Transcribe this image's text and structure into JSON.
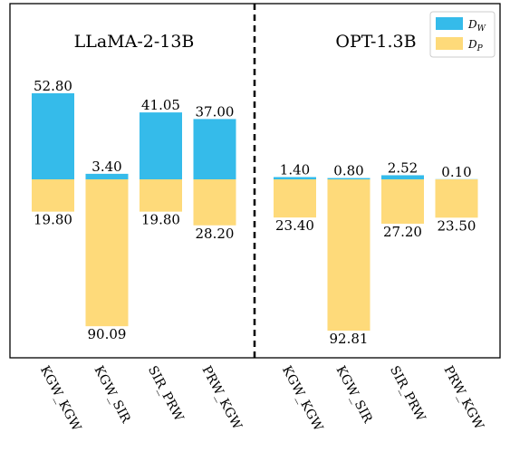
{
  "chart_data": {
    "type": "bar",
    "panels": [
      {
        "title": "LLaMA-2-13B",
        "categories": [
          "KGW_KGW",
          "KGW_SIR",
          "SIR_PRW",
          "PRW_KGW"
        ],
        "series": [
          {
            "name": "D_W",
            "values": [
              52.8,
              3.4,
              41.05,
              37.0
            ],
            "labels": [
              "52.80",
              "3.40",
              "41.05",
              "37.00"
            ]
          },
          {
            "name": "D_P",
            "values": [
              19.8,
              90.09,
              19.8,
              28.2
            ],
            "labels": [
              "19.80",
              "90.09",
              "19.80",
              "28.20"
            ]
          }
        ]
      },
      {
        "title": "OPT-1.3B",
        "categories": [
          "KGW_KGW",
          "KGW_SIR",
          "SIR_PRW",
          "PRW_KGW"
        ],
        "series": [
          {
            "name": "D_W",
            "values": [
              1.4,
              0.8,
              2.52,
              0.1
            ],
            "labels": [
              "1.40",
              "0.80",
              "2.52",
              "0.10"
            ]
          },
          {
            "name": "D_P",
            "values": [
              23.4,
              92.81,
              27.2,
              23.5
            ],
            "labels": [
              "23.40",
              "92.81",
              "27.20",
              "23.50"
            ]
          }
        ]
      }
    ],
    "legend": {
      "position": "top-right",
      "items": [
        {
          "main": "D",
          "sub": "W",
          "color": "#35BBEA"
        },
        {
          "main": "D",
          "sub": "P",
          "color": "#FEDA7A"
        }
      ]
    },
    "colors": {
      "D_W": "#35BBEA",
      "D_P": "#FEDA7A"
    },
    "layout_notes": {
      "D_W_direction": "up",
      "D_P_direction": "down",
      "separator": "dashed"
    }
  }
}
